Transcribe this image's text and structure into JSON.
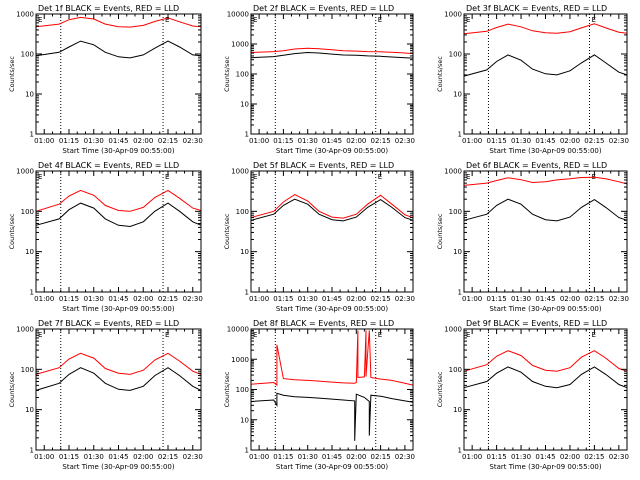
{
  "figure": {
    "background": "#ffffff",
    "colors": {
      "events": "#000000",
      "lld": "#ff0000",
      "axes": "#000000"
    }
  },
  "chart_data": [
    {
      "type": "line",
      "title": "Det 1f BLACK = Events, RED = LLD",
      "xlabel": "Start Time (30-Apr-09 00:55:00)",
      "ylabel": "Counts/sec",
      "x_ticks": [
        "01:00",
        "01:15",
        "01:30",
        "01:45",
        "02:00",
        "02:15",
        "02:30"
      ],
      "y_ticks": [
        "1",
        "10",
        "100",
        "1000"
      ],
      "y_scale": "log",
      "ylim": [
        1,
        1000
      ],
      "vlines": [
        "01:10",
        "02:12"
      ],
      "markers": [
        "E",
        "E"
      ],
      "grid": false,
      "series": [
        {
          "name": "Events",
          "color": "#000000",
          "x": [
            "00:55",
            "01:09",
            "01:15",
            "01:22",
            "01:30",
            "01:37",
            "01:45",
            "01:52",
            "02:00",
            "02:07",
            "02:15",
            "02:22",
            "02:30",
            "02:35"
          ],
          "values": [
            90,
            110,
            150,
            210,
            170,
            110,
            85,
            80,
            95,
            140,
            210,
            150,
            95,
            90
          ]
        },
        {
          "name": "LLD",
          "color": "#ff0000",
          "x": [
            "00:55",
            "01:09",
            "01:15",
            "01:22",
            "01:30",
            "01:37",
            "01:45",
            "01:52",
            "02:00",
            "02:07",
            "02:15",
            "02:22",
            "02:30",
            "02:35"
          ],
          "values": [
            480,
            560,
            720,
            820,
            750,
            560,
            480,
            470,
            520,
            650,
            800,
            640,
            500,
            480
          ]
        }
      ]
    },
    {
      "type": "line",
      "title": "Det 2f BLACK = Events, RED = LLD",
      "xlabel": "Start Time (30-Apr-09 00:55:00)",
      "ylabel": "Counts/sec",
      "x_ticks": [
        "01:00",
        "01:15",
        "01:30",
        "01:45",
        "02:00",
        "02:15",
        "02:30"
      ],
      "y_ticks": [
        "1",
        "10",
        "100",
        "1000",
        "10000"
      ],
      "y_scale": "log",
      "ylim": [
        1,
        10000
      ],
      "vlines": [
        "01:10",
        "02:12"
      ],
      "markers": [
        "E",
        "E"
      ],
      "grid": false,
      "series": [
        {
          "name": "Events",
          "color": "#000000",
          "x": [
            "00:55",
            "01:09",
            "01:15",
            "01:22",
            "01:30",
            "01:37",
            "01:45",
            "01:52",
            "02:00",
            "02:07",
            "02:15",
            "02:22",
            "02:30",
            "02:35"
          ],
          "values": [
            350,
            380,
            420,
            480,
            520,
            500,
            460,
            430,
            420,
            400,
            390,
            370,
            350,
            340
          ]
        },
        {
          "name": "LLD",
          "color": "#ff0000",
          "x": [
            "00:55",
            "01:09",
            "01:15",
            "01:22",
            "01:30",
            "01:37",
            "01:45",
            "01:52",
            "02:00",
            "02:07",
            "02:15",
            "02:22",
            "02:30",
            "02:35"
          ],
          "values": [
            520,
            560,
            600,
            680,
            720,
            690,
            640,
            600,
            580,
            560,
            550,
            530,
            500,
            480
          ]
        }
      ]
    },
    {
      "type": "line",
      "title": "Det 3f BLACK = Events, RED = LLD",
      "xlabel": "Start Time (30-Apr-09 00:55:00)",
      "ylabel": "Counts/sec",
      "x_ticks": [
        "01:00",
        "01:15",
        "01:30",
        "01:45",
        "02:00",
        "02:15",
        "02:30"
      ],
      "y_ticks": [
        "1",
        "10",
        "100",
        "1000"
      ],
      "y_scale": "log",
      "ylim": [
        1,
        1000
      ],
      "vlines": [
        "01:10",
        "02:12"
      ],
      "markers": [
        "E",
        "E"
      ],
      "grid": false,
      "series": [
        {
          "name": "Events",
          "color": "#000000",
          "x": [
            "00:55",
            "01:09",
            "01:15",
            "01:22",
            "01:30",
            "01:37",
            "01:45",
            "01:52",
            "02:00",
            "02:07",
            "02:15",
            "02:22",
            "02:30",
            "02:35"
          ],
          "values": [
            28,
            40,
            65,
            95,
            70,
            42,
            32,
            30,
            38,
            60,
            95,
            60,
            35,
            30
          ]
        },
        {
          "name": "LLD",
          "color": "#ff0000",
          "x": [
            "00:55",
            "01:09",
            "01:15",
            "01:22",
            "01:30",
            "01:37",
            "01:45",
            "01:52",
            "02:00",
            "02:07",
            "02:15",
            "02:22",
            "02:30",
            "02:35"
          ],
          "values": [
            320,
            370,
            460,
            560,
            480,
            380,
            340,
            330,
            360,
            450,
            570,
            450,
            350,
            330
          ]
        }
      ]
    },
    {
      "type": "line",
      "title": "Det 4f BLACK = Events, RED = LLD",
      "xlabel": "Start Time (30-Apr-09 00:55:00)",
      "ylabel": "Counts/sec",
      "x_ticks": [
        "01:00",
        "01:15",
        "01:30",
        "01:45",
        "02:00",
        "02:15",
        "02:30"
      ],
      "y_ticks": [
        "1",
        "10",
        "100",
        "1000"
      ],
      "y_scale": "log",
      "ylim": [
        1,
        1000
      ],
      "vlines": [
        "01:10",
        "02:12"
      ],
      "markers": [
        "E",
        "E"
      ],
      "grid": false,
      "series": [
        {
          "name": "Events",
          "color": "#000000",
          "x": [
            "00:55",
            "01:09",
            "01:15",
            "01:22",
            "01:30",
            "01:37",
            "01:45",
            "01:52",
            "02:00",
            "02:07",
            "02:15",
            "02:22",
            "02:30",
            "02:35"
          ],
          "values": [
            45,
            65,
            110,
            160,
            120,
            65,
            45,
            42,
            55,
            100,
            160,
            100,
            55,
            45
          ]
        },
        {
          "name": "LLD",
          "color": "#ff0000",
          "x": [
            "00:55",
            "01:09",
            "01:15",
            "01:22",
            "01:30",
            "01:37",
            "01:45",
            "01:52",
            "02:00",
            "02:07",
            "02:15",
            "02:22",
            "02:30",
            "02:35"
          ],
          "values": [
            100,
            150,
            240,
            330,
            250,
            140,
            105,
            100,
            125,
            220,
            330,
            210,
            120,
            105
          ]
        }
      ]
    },
    {
      "type": "line",
      "title": "Det 5f BLACK = Events, RED = LLD",
      "xlabel": "Start Time (30-Apr-09 00:55:00)",
      "ylabel": "Counts/sec",
      "x_ticks": [
        "01:00",
        "01:15",
        "01:30",
        "01:45",
        "02:00",
        "02:15",
        "02:30"
      ],
      "y_ticks": [
        "1",
        "10",
        "100",
        "1000"
      ],
      "y_scale": "log",
      "ylim": [
        1,
        1000
      ],
      "vlines": [
        "01:10",
        "02:12"
      ],
      "markers": [
        "E",
        "E"
      ],
      "grid": false,
      "series": [
        {
          "name": "Events",
          "color": "#000000",
          "x": [
            "00:55",
            "01:09",
            "01:15",
            "01:22",
            "01:30",
            "01:37",
            "01:45",
            "01:52",
            "02:00",
            "02:07",
            "02:15",
            "02:22",
            "02:30",
            "02:35"
          ],
          "values": [
            60,
            85,
            140,
            200,
            150,
            85,
            62,
            58,
            72,
            125,
            195,
            125,
            70,
            60
          ]
        },
        {
          "name": "LLD",
          "color": "#ff0000",
          "x": [
            "00:55",
            "01:09",
            "01:15",
            "01:22",
            "01:30",
            "01:37",
            "01:45",
            "01:52",
            "02:00",
            "02:07",
            "02:15",
            "02:22",
            "02:30",
            "02:35"
          ],
          "values": [
            70,
            100,
            170,
            260,
            180,
            100,
            72,
            68,
            85,
            150,
            250,
            150,
            82,
            70
          ]
        }
      ]
    },
    {
      "type": "line",
      "title": "Det 6f BLACK = Events, RED = LLD",
      "xlabel": "Start Time (30-Apr-09 00:55:00)",
      "ylabel": "Counts/sec",
      "x_ticks": [
        "01:00",
        "01:15",
        "01:30",
        "01:45",
        "02:00",
        "02:15",
        "02:30"
      ],
      "y_ticks": [
        "1",
        "10",
        "100",
        "1000"
      ],
      "y_scale": "log",
      "ylim": [
        1,
        1000
      ],
      "vlines": [
        "01:10",
        "02:12"
      ],
      "markers": [
        "E",
        "E"
      ],
      "grid": false,
      "series": [
        {
          "name": "Events",
          "color": "#000000",
          "x": [
            "00:55",
            "01:09",
            "01:15",
            "01:22",
            "01:30",
            "01:37",
            "01:45",
            "01:52",
            "02:00",
            "02:07",
            "02:15",
            "02:22",
            "02:30",
            "02:35"
          ],
          "values": [
            60,
            85,
            140,
            200,
            150,
            85,
            62,
            58,
            72,
            125,
            195,
            125,
            70,
            60
          ]
        },
        {
          "name": "LLD",
          "color": "#ff0000",
          "x": [
            "00:55",
            "01:09",
            "01:15",
            "01:22",
            "01:30",
            "01:37",
            "01:45",
            "01:52",
            "02:00",
            "02:07",
            "02:15",
            "02:22",
            "02:30",
            "02:35"
          ],
          "values": [
            440,
            500,
            580,
            680,
            610,
            520,
            540,
            600,
            640,
            690,
            700,
            640,
            540,
            480
          ]
        }
      ]
    },
    {
      "type": "line",
      "title": "Det 7f BLACK = Events, RED = LLD",
      "xlabel": "Start Time (30-Apr-09 00:55:00)",
      "ylabel": "Counts/sec",
      "x_ticks": [
        "01:00",
        "01:15",
        "01:30",
        "01:45",
        "02:00",
        "02:15",
        "02:30"
      ],
      "y_ticks": [
        "1",
        "10",
        "100",
        "1000"
      ],
      "y_scale": "log",
      "ylim": [
        1,
        1000
      ],
      "vlines": [
        "01:10",
        "02:12"
      ],
      "markers": [
        "E",
        "E"
      ],
      "grid": false,
      "series": [
        {
          "name": "Events",
          "color": "#000000",
          "x": [
            "00:55",
            "01:09",
            "01:15",
            "01:22",
            "01:30",
            "01:37",
            "01:45",
            "01:52",
            "02:00",
            "02:07",
            "02:15",
            "02:22",
            "02:30",
            "02:35"
          ],
          "values": [
            30,
            45,
            75,
            110,
            80,
            45,
            32,
            30,
            38,
            70,
            110,
            70,
            38,
            30
          ]
        },
        {
          "name": "LLD",
          "color": "#ff0000",
          "x": [
            "00:55",
            "01:09",
            "01:15",
            "01:22",
            "01:30",
            "01:37",
            "01:45",
            "01:52",
            "02:00",
            "02:07",
            "02:15",
            "02:22",
            "02:30",
            "02:35"
          ],
          "values": [
            75,
            110,
            180,
            250,
            190,
            105,
            80,
            75,
            95,
            170,
            250,
            160,
            90,
            75
          ]
        }
      ]
    },
    {
      "type": "line",
      "title": "Det 8f BLACK = Events, RED = LLD",
      "xlabel": "Start Time (30-Apr-09 00:55:00)",
      "ylabel": "Counts/sec",
      "x_ticks": [
        "01:00",
        "01:15",
        "01:30",
        "01:45",
        "02:00",
        "02:15",
        "02:30"
      ],
      "y_ticks": [
        "1",
        "10",
        "100",
        "1000",
        "10000"
      ],
      "y_scale": "log",
      "ylim": [
        1,
        10000
      ],
      "vlines": [
        "01:10",
        "02:12"
      ],
      "markers": [
        "E",
        "E"
      ],
      "grid": false,
      "series": [
        {
          "name": "Events",
          "color": "#000000",
          "x": [
            "00:55",
            "01:09",
            "01:11",
            "01:11",
            "01:15",
            "01:22",
            "01:30",
            "01:37",
            "01:45",
            "01:52",
            "01:59",
            "01:59",
            "02:00",
            "02:05",
            "02:08",
            "02:08",
            "02:09",
            "02:15",
            "02:22",
            "02:30",
            "02:35"
          ],
          "values": [
            40,
            45,
            30,
            75,
            65,
            58,
            55,
            52,
            48,
            45,
            42,
            2,
            70,
            55,
            40,
            3,
            65,
            60,
            50,
            42,
            38
          ]
        },
        {
          "name": "LLD",
          "color": "#ff0000",
          "x": [
            "00:55",
            "01:09",
            "01:11",
            "01:11",
            "01:15",
            "01:22",
            "01:30",
            "01:37",
            "01:45",
            "01:52",
            "01:59",
            "02:00",
            "02:01",
            "02:01",
            "02:05",
            "02:06",
            "02:06",
            "02:08",
            "02:09",
            "02:15",
            "02:22",
            "02:30",
            "02:35"
          ],
          "values": [
            150,
            170,
            140,
            3000,
            230,
            210,
            200,
            190,
            175,
            165,
            160,
            170,
            9000,
            250,
            260,
            9000,
            270,
            9000,
            250,
            220,
            200,
            160,
            140
          ]
        }
      ]
    },
    {
      "type": "line",
      "title": "Det 9f BLACK = Events, RED = LLD",
      "xlabel": "Start Time (30-Apr-09 00:55:00)",
      "ylabel": "Counts/sec",
      "x_ticks": [
        "01:00",
        "01:15",
        "01:30",
        "01:45",
        "02:00",
        "02:15",
        "02:30"
      ],
      "y_ticks": [
        "1",
        "10",
        "100",
        "1000"
      ],
      "y_scale": "log",
      "ylim": [
        1,
        1000
      ],
      "vlines": [
        "01:10",
        "02:12"
      ],
      "markers": [
        "E",
        "E"
      ],
      "grid": false,
      "series": [
        {
          "name": "Events",
          "color": "#000000",
          "x": [
            "00:55",
            "01:09",
            "01:15",
            "01:22",
            "01:30",
            "01:37",
            "01:45",
            "01:52",
            "02:00",
            "02:07",
            "02:15",
            "02:22",
            "02:30",
            "02:35"
          ],
          "values": [
            35,
            50,
            80,
            115,
            85,
            50,
            38,
            35,
            42,
            75,
            115,
            75,
            42,
            35
          ]
        },
        {
          "name": "LLD",
          "color": "#ff0000",
          "x": [
            "00:55",
            "01:09",
            "01:15",
            "01:22",
            "01:30",
            "01:37",
            "01:45",
            "01:52",
            "02:00",
            "02:07",
            "02:15",
            "02:22",
            "02:30",
            "02:35"
          ],
          "values": [
            90,
            130,
            210,
            290,
            220,
            125,
            95,
            90,
            110,
            200,
            290,
            190,
            105,
            90
          ]
        }
      ]
    }
  ]
}
